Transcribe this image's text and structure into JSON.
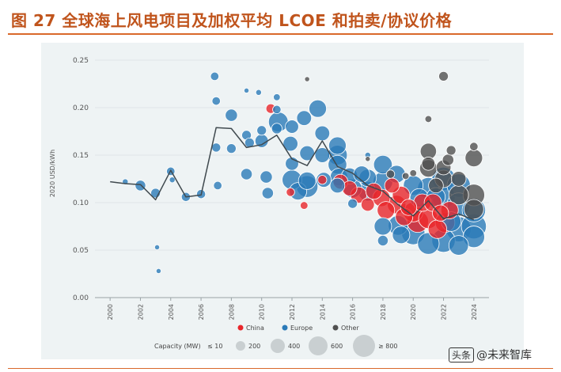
{
  "figure_title": "图 27 全球海上风电项目及加权平均 LCOE 和拍卖/协议价格",
  "watermark": {
    "prefix": "头条",
    "text": "@未来智库"
  },
  "colors": {
    "china": "#e8262b",
    "europe": "#2a7ab8",
    "other": "#505050",
    "line": "#404a4f",
    "panel": "#eef3f4"
  },
  "chart_data": {
    "type": "scatter",
    "ylabel": "2020 USD/kWh",
    "xlabel": "",
    "xlim": [
      1999,
      2025
    ],
    "ylim": [
      0,
      0.25
    ],
    "x_ticks": [
      "2000",
      "2002",
      "2004",
      "2006",
      "2008",
      "2010",
      "2012",
      "2014",
      "2016",
      "2018",
      "2020",
      "2022",
      "2024"
    ],
    "y_ticks": [
      "0.00",
      "0.05",
      "0.10",
      "0.15",
      "0.20",
      "0.25"
    ],
    "legend": {
      "series": [
        {
          "name": "China",
          "color": "#e8262b"
        },
        {
          "name": "Europe",
          "color": "#2a7ab8"
        },
        {
          "name": "Other",
          "color": "#505050"
        }
      ],
      "capacity_title": "Capacity (MW)",
      "capacity_items": [
        {
          "label": "≤ 10",
          "mw": 10
        },
        {
          "label": "200",
          "mw": 200
        },
        {
          "label": "400",
          "mw": 400
        },
        {
          "label": "600",
          "mw": 600
        },
        {
          "label": "≥ 800",
          "mw": 800
        }
      ]
    },
    "weighted_average_line": {
      "x": [
        2000,
        2001,
        2002,
        2003,
        2004,
        2005,
        2006,
        2007,
        2008,
        2009,
        2010,
        2011,
        2012,
        2013,
        2014,
        2015,
        2016,
        2017,
        2018,
        2019,
        2020,
        2021,
        2022,
        2023,
        2024
      ],
      "y": [
        0.122,
        0.12,
        0.119,
        0.103,
        0.134,
        0.106,
        0.108,
        0.179,
        0.178,
        0.158,
        0.161,
        0.171,
        0.146,
        0.139,
        0.165,
        0.138,
        0.131,
        0.118,
        0.112,
        0.098,
        0.086,
        0.102,
        0.083,
        0.088,
        0.082
      ]
    },
    "series": [
      {
        "name": "China",
        "points": [
          {
            "x": 2010.6,
            "y": 0.199,
            "mw": 60
          },
          {
            "x": 2011.9,
            "y": 0.111,
            "mw": 40
          },
          {
            "x": 2012.8,
            "y": 0.097,
            "mw": 30
          },
          {
            "x": 2014.0,
            "y": 0.124,
            "mw": 50
          },
          {
            "x": 2015.2,
            "y": 0.122,
            "mw": 200
          },
          {
            "x": 2015.8,
            "y": 0.115,
            "mw": 200
          },
          {
            "x": 2016.4,
            "y": 0.108,
            "mw": 250
          },
          {
            "x": 2017.0,
            "y": 0.098,
            "mw": 150
          },
          {
            "x": 2017.4,
            "y": 0.112,
            "mw": 250
          },
          {
            "x": 2017.9,
            "y": 0.105,
            "mw": 300
          },
          {
            "x": 2018.2,
            "y": 0.092,
            "mw": 300
          },
          {
            "x": 2018.6,
            "y": 0.118,
            "mw": 200
          },
          {
            "x": 2018.9,
            "y": 0.098,
            "mw": 350
          },
          {
            "x": 2019.2,
            "y": 0.108,
            "mw": 300
          },
          {
            "x": 2019.4,
            "y": 0.085,
            "mw": 300
          },
          {
            "x": 2019.7,
            "y": 0.095,
            "mw": 250
          },
          {
            "x": 2020.0,
            "y": 0.09,
            "mw": 400
          },
          {
            "x": 2020.3,
            "y": 0.08,
            "mw": 500
          },
          {
            "x": 2020.6,
            "y": 0.1,
            "mw": 300
          },
          {
            "x": 2021.0,
            "y": 0.083,
            "mw": 400
          },
          {
            "x": 2021.3,
            "y": 0.1,
            "mw": 300
          },
          {
            "x": 2021.6,
            "y": 0.072,
            "mw": 350
          },
          {
            "x": 2021.8,
            "y": 0.089,
            "mw": 250
          },
          {
            "x": 2022.1,
            "y": 0.079,
            "mw": 400
          },
          {
            "x": 2022.4,
            "y": 0.092,
            "mw": 300
          }
        ]
      },
      {
        "name": "Europe",
        "points": [
          {
            "x": 2001.0,
            "y": 0.122,
            "mw": 10
          },
          {
            "x": 2002.0,
            "y": 0.118,
            "mw": 80
          },
          {
            "x": 2003.0,
            "y": 0.11,
            "mw": 60
          },
          {
            "x": 2003.1,
            "y": 0.053,
            "mw": 5
          },
          {
            "x": 2003.2,
            "y": 0.028,
            "mw": 5
          },
          {
            "x": 2004.0,
            "y": 0.133,
            "mw": 40
          },
          {
            "x": 2004.1,
            "y": 0.124,
            "mw": 10
          },
          {
            "x": 2005.0,
            "y": 0.106,
            "mw": 50
          },
          {
            "x": 2006.0,
            "y": 0.109,
            "mw": 50
          },
          {
            "x": 2006.9,
            "y": 0.233,
            "mw": 40
          },
          {
            "x": 2007.0,
            "y": 0.207,
            "mw": 40
          },
          {
            "x": 2007.0,
            "y": 0.158,
            "mw": 50
          },
          {
            "x": 2007.1,
            "y": 0.118,
            "mw": 40
          },
          {
            "x": 2008.0,
            "y": 0.192,
            "mw": 120
          },
          {
            "x": 2008.0,
            "y": 0.157,
            "mw": 60
          },
          {
            "x": 2009.0,
            "y": 0.218,
            "mw": 5
          },
          {
            "x": 2009.0,
            "y": 0.171,
            "mw": 60
          },
          {
            "x": 2009.0,
            "y": 0.13,
            "mw": 100
          },
          {
            "x": 2009.2,
            "y": 0.163,
            "mw": 60
          },
          {
            "x": 2009.8,
            "y": 0.216,
            "mw": 10
          },
          {
            "x": 2010.0,
            "y": 0.176,
            "mw": 60
          },
          {
            "x": 2010.0,
            "y": 0.165,
            "mw": 150
          },
          {
            "x": 2010.3,
            "y": 0.127,
            "mw": 120
          },
          {
            "x": 2010.4,
            "y": 0.11,
            "mw": 100
          },
          {
            "x": 2011.0,
            "y": 0.211,
            "mw": 20
          },
          {
            "x": 2011.0,
            "y": 0.198,
            "mw": 40
          },
          {
            "x": 2011.0,
            "y": 0.178,
            "mw": 80
          },
          {
            "x": 2011.1,
            "y": 0.185,
            "mw": 400
          },
          {
            "x": 2011.9,
            "y": 0.162,
            "mw": 200
          },
          {
            "x": 2012.0,
            "y": 0.18,
            "mw": 150
          },
          {
            "x": 2012.0,
            "y": 0.141,
            "mw": 150
          },
          {
            "x": 2012.0,
            "y": 0.124,
            "mw": 400
          },
          {
            "x": 2012.4,
            "y": 0.112,
            "mw": 300
          },
          {
            "x": 2012.8,
            "y": 0.189,
            "mw": 200
          },
          {
            "x": 2013.0,
            "y": 0.152,
            "mw": 200
          },
          {
            "x": 2013.0,
            "y": 0.117,
            "mw": 500
          },
          {
            "x": 2013.0,
            "y": 0.123,
            "mw": 300
          },
          {
            "x": 2013.7,
            "y": 0.199,
            "mw": 300
          },
          {
            "x": 2014.0,
            "y": 0.173,
            "mw": 200
          },
          {
            "x": 2014.0,
            "y": 0.15,
            "mw": 200
          },
          {
            "x": 2014.1,
            "y": 0.124,
            "mw": 200
          },
          {
            "x": 2015.0,
            "y": 0.16,
            "mw": 300
          },
          {
            "x": 2015.0,
            "y": 0.15,
            "mw": 400
          },
          {
            "x": 2015.0,
            "y": 0.14,
            "mw": 350
          },
          {
            "x": 2015.1,
            "y": 0.127,
            "mw": 300
          },
          {
            "x": 2015.0,
            "y": 0.118,
            "mw": 200
          },
          {
            "x": 2015.8,
            "y": 0.128,
            "mw": 250
          },
          {
            "x": 2016.0,
            "y": 0.115,
            "mw": 350
          },
          {
            "x": 2016.0,
            "y": 0.099,
            "mw": 60
          },
          {
            "x": 2016.6,
            "y": 0.13,
            "mw": 250
          },
          {
            "x": 2017.0,
            "y": 0.126,
            "mw": 300
          },
          {
            "x": 2017.0,
            "y": 0.112,
            "mw": 400
          },
          {
            "x": 2017.0,
            "y": 0.15,
            "mw": 10
          },
          {
            "x": 2018.0,
            "y": 0.14,
            "mw": 350
          },
          {
            "x": 2018.0,
            "y": 0.122,
            "mw": 400
          },
          {
            "x": 2018.0,
            "y": 0.075,
            "mw": 300
          },
          {
            "x": 2018.0,
            "y": 0.06,
            "mw": 80
          },
          {
            "x": 2018.9,
            "y": 0.13,
            "mw": 300
          },
          {
            "x": 2019.0,
            "y": 0.076,
            "mw": 400
          },
          {
            "x": 2019.2,
            "y": 0.066,
            "mw": 300
          },
          {
            "x": 2020.0,
            "y": 0.118,
            "mw": 400
          },
          {
            "x": 2020.0,
            "y": 0.068,
            "mw": 600
          },
          {
            "x": 2020.4,
            "y": 0.105,
            "mw": 350
          },
          {
            "x": 2021.0,
            "y": 0.115,
            "mw": 500
          },
          {
            "x": 2021.0,
            "y": 0.057,
            "mw": 500
          },
          {
            "x": 2021.5,
            "y": 0.106,
            "mw": 350
          },
          {
            "x": 2022.0,
            "y": 0.125,
            "mw": 600
          },
          {
            "x": 2022.0,
            "y": 0.106,
            "mw": 600
          },
          {
            "x": 2022.0,
            "y": 0.06,
            "mw": 600
          },
          {
            "x": 2022.5,
            "y": 0.08,
            "mw": 400
          },
          {
            "x": 2023.0,
            "y": 0.118,
            "mw": 600
          },
          {
            "x": 2023.0,
            "y": 0.098,
            "mw": 600
          },
          {
            "x": 2023.0,
            "y": 0.072,
            "mw": 700
          },
          {
            "x": 2023.0,
            "y": 0.055,
            "mw": 400
          },
          {
            "x": 2024.0,
            "y": 0.092,
            "mw": 600
          },
          {
            "x": 2024.0,
            "y": 0.075,
            "mw": 700
          },
          {
            "x": 2024.0,
            "y": 0.064,
            "mw": 500
          }
        ]
      },
      {
        "name": "Other",
        "points": [
          {
            "x": 2013.0,
            "y": 0.23,
            "mw": 5
          },
          {
            "x": 2017.0,
            "y": 0.146,
            "mw": 5
          },
          {
            "x": 2018.5,
            "y": 0.13,
            "mw": 40
          },
          {
            "x": 2019.5,
            "y": 0.128,
            "mw": 20
          },
          {
            "x": 2020.0,
            "y": 0.131,
            "mw": 20
          },
          {
            "x": 2021.0,
            "y": 0.188,
            "mw": 20
          },
          {
            "x": 2021.0,
            "y": 0.154,
            "mw": 250
          },
          {
            "x": 2021.0,
            "y": 0.136,
            "mw": 300
          },
          {
            "x": 2021.0,
            "y": 0.141,
            "mw": 150
          },
          {
            "x": 2021.5,
            "y": 0.118,
            "mw": 200
          },
          {
            "x": 2022.0,
            "y": 0.233,
            "mw": 60
          },
          {
            "x": 2022.0,
            "y": 0.137,
            "mw": 200
          },
          {
            "x": 2022.0,
            "y": 0.125,
            "mw": 300
          },
          {
            "x": 2022.3,
            "y": 0.145,
            "mw": 100
          },
          {
            "x": 2022.5,
            "y": 0.155,
            "mw": 60
          },
          {
            "x": 2023.0,
            "y": 0.108,
            "mw": 400
          },
          {
            "x": 2023.0,
            "y": 0.125,
            "mw": 200
          },
          {
            "x": 2024.0,
            "y": 0.147,
            "mw": 300
          },
          {
            "x": 2024.0,
            "y": 0.159,
            "mw": 40
          },
          {
            "x": 2024.0,
            "y": 0.108,
            "mw": 500
          },
          {
            "x": 2024.0,
            "y": 0.093,
            "mw": 400
          }
        ]
      }
    ]
  }
}
